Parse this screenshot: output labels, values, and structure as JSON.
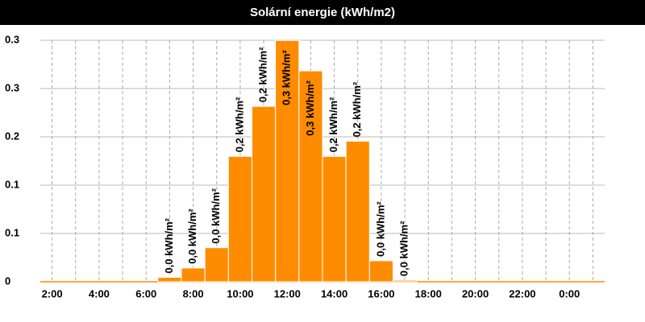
{
  "chart_data": {
    "type": "bar",
    "title": "Solární energie (kWh/m2)",
    "categories": [
      "2:00",
      null,
      "4:00",
      null,
      "6:00",
      null,
      "8:00",
      null,
      "10:00",
      null,
      "12:00",
      null,
      "14:00",
      null,
      "16:00",
      null,
      "18:00",
      null,
      "20:00",
      null,
      "22:00",
      null,
      "0:00",
      null
    ],
    "values": [
      0,
      0,
      0,
      0,
      0,
      0.006,
      0.019,
      0.047,
      0.173,
      0.242,
      0.333,
      0.291,
      0.173,
      0.194,
      0.029,
      0.002,
      0,
      0,
      0,
      0,
      0,
      0,
      0,
      0
    ],
    "value_labels": [
      null,
      null,
      null,
      null,
      null,
      "0,0 kWh/m²",
      "0,0 kWh/m²",
      "0,0 kWh/m²",
      "0,2 kWh/m²",
      "0,2 kWh/m²",
      "0,3 kWh/m²",
      "0,3 kWh/m²",
      "0,2 kWh/m²",
      "0,2 kWh/m²",
      "0,0 kWh/m²",
      "0,0 kWh/m²",
      null,
      null,
      null,
      null,
      null,
      null,
      null,
      null
    ],
    "color": "#ff8c00",
    "ylim": [
      0,
      0.3333
    ],
    "yticks": [
      0,
      {
        "value": 0.0667,
        "label": "0.1"
      },
      {
        "value": 0.1333,
        "label": "0.1"
      },
      0.2,
      {
        "value": 0.2667,
        "label": "0.3"
      },
      {
        "value": 0.3333,
        "label": "0.3"
      }
    ],
    "grid": true
  }
}
